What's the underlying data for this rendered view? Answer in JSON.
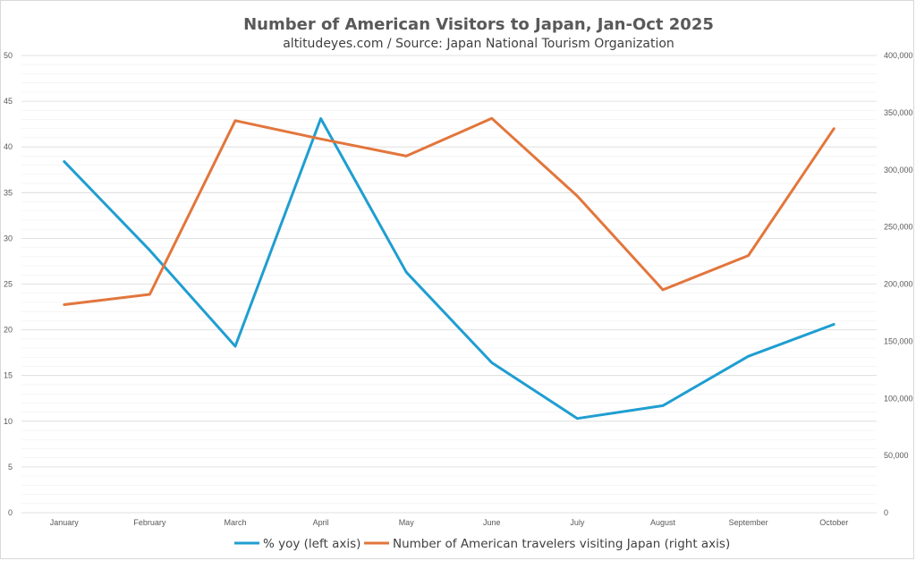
{
  "chart_data": {
    "type": "line",
    "title": "Number of American Visitors to Japan, Jan-Oct 2025",
    "subtitle": "altitudeyes.com / Source: Japan National Tourism Organization",
    "categories": [
      "January",
      "February",
      "March",
      "April",
      "May",
      "June",
      "July",
      "August",
      "September",
      "October"
    ],
    "series": [
      {
        "name": "% yoy (left axis)",
        "axis": "left",
        "color": "#1f9ed1",
        "values": [
          38.4,
          28.7,
          18.2,
          43.1,
          26.3,
          16.4,
          10.3,
          11.7,
          17.1,
          20.6
        ]
      },
      {
        "name": "Number of American travelers visiting Japan (right axis)",
        "axis": "right",
        "color": "#e2763c",
        "values": [
          182000,
          191000,
          343000,
          327000,
          312000,
          345000,
          277000,
          195000,
          225000,
          336000
        ]
      }
    ],
    "left_axis": {
      "min": 0,
      "max": 50,
      "step": 5,
      "ticks": [
        "0",
        "5",
        "10",
        "15",
        "20",
        "25",
        "30",
        "35",
        "40",
        "45",
        "50"
      ]
    },
    "right_axis": {
      "min": 0,
      "max": 400000,
      "step": 50000,
      "ticks": [
        "0",
        "50,000",
        "100,000",
        "150,000",
        "200,000",
        "250,000",
        "300,000",
        "350,000",
        "400,000"
      ]
    },
    "grid": true,
    "legend_position": "bottom"
  },
  "colors": {
    "grid_major": "#d9d9d9",
    "grid_minor": "#efefef",
    "axis_text": "#595959"
  }
}
